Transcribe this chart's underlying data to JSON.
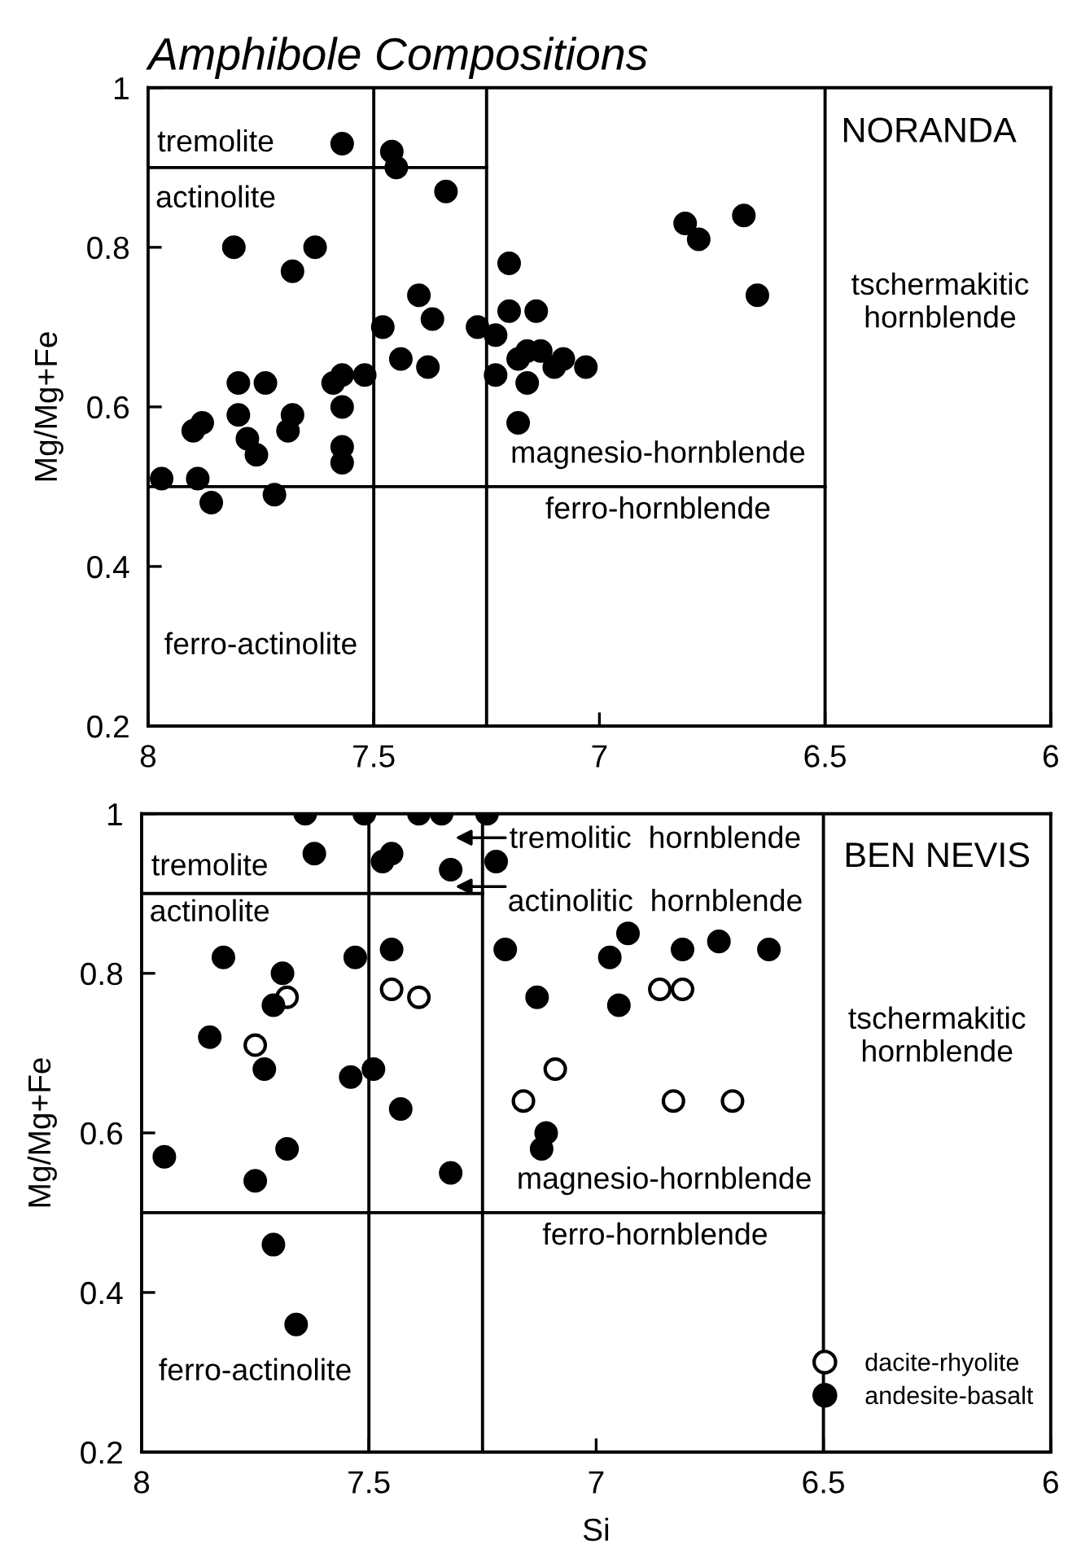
{
  "chart_data": [
    {
      "type": "scatter",
      "title": "Amphibole Compositions",
      "ylabel": "Mg/Mg+Fe",
      "xlim": [
        8,
        6
      ],
      "ylim": [
        0.2,
        1
      ],
      "xticks": [
        8,
        7.5,
        7,
        6.5,
        6
      ],
      "yticks": [
        0.2,
        0.4,
        0.6,
        0.8,
        1
      ],
      "marker": "circle",
      "grid": false,
      "legend": false,
      "annotations": [
        "tremolite",
        "actinolite",
        "ferro-actinolite",
        "magnesio-hornblende",
        "ferro-hornblende",
        "NORANDA",
        "tschermakitic\nhornblende"
      ],
      "ref_lines": [
        {
          "axis": "x",
          "value": 7.5,
          "color": "#000000"
        },
        {
          "axis": "x",
          "value": 7.25,
          "color": "#000000"
        },
        {
          "axis": "x",
          "value": 6.5,
          "color": "#000000"
        }
      ],
      "series": [
        {
          "color": "#000000",
          "x": [
            7.57,
            7.46,
            7.45,
            7.34,
            7.81,
            7.63,
            7.68,
            7.2,
            7.4,
            7.48,
            7.37,
            7.27,
            7.23,
            7.2,
            7.14,
            7.44,
            7.38,
            7.52,
            7.57,
            7.59,
            7.8,
            7.74,
            7.8,
            7.68,
            7.57,
            7.88,
            7.9,
            7.78,
            7.69,
            7.57,
            7.76,
            7.57,
            7.97,
            7.89,
            7.86,
            7.72,
            7.18,
            7.18,
            7.23,
            7.16,
            7.13,
            7.16,
            7.1,
            7.08,
            7.03,
            6.81,
            6.78,
            6.68,
            6.65
          ],
          "values": [
            0.93,
            0.92,
            0.9,
            0.87,
            0.8,
            0.8,
            0.77,
            0.78,
            0.74,
            0.7,
            0.71,
            0.7,
            0.69,
            0.72,
            0.72,
            0.66,
            0.65,
            0.64,
            0.64,
            0.63,
            0.63,
            0.63,
            0.59,
            0.59,
            0.6,
            0.58,
            0.57,
            0.56,
            0.57,
            0.55,
            0.54,
            0.53,
            0.51,
            0.51,
            0.48,
            0.49,
            0.58,
            0.66,
            0.64,
            0.67,
            0.67,
            0.63,
            0.65,
            0.66,
            0.65,
            0.83,
            0.81,
            0.84,
            0.74
          ]
        },
        {
          "type": "line",
          "marker": "none",
          "color": "#000000",
          "x": [
            8,
            7.25
          ],
          "values": [
            0.9,
            0.9
          ]
        },
        {
          "type": "line",
          "marker": "none",
          "color": "#000000",
          "x": [
            8,
            6.5
          ],
          "values": [
            0.5,
            0.5
          ]
        }
      ]
    },
    {
      "type": "scatter",
      "xlabel": "Si",
      "ylabel": "Mg/Mg+Fe",
      "xlim": [
        8,
        6
      ],
      "ylim": [
        0.2,
        1
      ],
      "xticks": [
        8,
        7.5,
        7,
        6.5,
        6
      ],
      "yticks": [
        0.2,
        0.4,
        0.6,
        0.8,
        1
      ],
      "marker": "circle",
      "grid": false,
      "legend": "bottom right",
      "annotations": [
        "tremolite",
        "actinolite",
        "tremolitic  hornblende",
        "actinolitic  hornblende",
        "ferro-actinolite",
        "magnesio-hornblende",
        "ferro-hornblende",
        "BEN NEVIS",
        "tschermakitic\nhornblende"
      ],
      "ref_lines": [
        {
          "axis": "x",
          "value": 7.5,
          "color": "#000000"
        },
        {
          "axis": "x",
          "value": 7.25,
          "color": "#000000"
        },
        {
          "axis": "x",
          "value": 6.5,
          "color": "#000000"
        }
      ],
      "series": [
        {
          "name": "dacite-rhyolite",
          "color": "#ffffff",
          "x": [
            7.68,
            7.75,
            7.45,
            7.39,
            7.09,
            7.16,
            6.86,
            6.81,
            6.83,
            6.7
          ],
          "values": [
            0.77,
            0.71,
            0.78,
            0.77,
            0.68,
            0.64,
            0.78,
            0.78,
            0.64,
            0.64
          ]
        },
        {
          "name": "andesite-basalt",
          "color": "#000000",
          "x": [
            7.64,
            7.51,
            7.39,
            7.34,
            7.24,
            7.62,
            7.45,
            7.47,
            7.32,
            7.22,
            7.82,
            7.69,
            7.71,
            7.85,
            7.73,
            7.53,
            7.45,
            7.54,
            7.49,
            7.43,
            7.95,
            7.68,
            7.75,
            7.32,
            7.71,
            7.66,
            7.2,
            7.13,
            7.11,
            7.12,
            6.93,
            6.97,
            6.81,
            6.73,
            6.62,
            6.95
          ],
          "values": [
            1,
            1,
            1,
            1,
            1,
            0.95,
            0.95,
            0.94,
            0.93,
            0.94,
            0.82,
            0.8,
            0.76,
            0.72,
            0.68,
            0.82,
            0.83,
            0.67,
            0.68,
            0.63,
            0.57,
            0.58,
            0.54,
            0.55,
            0.46,
            0.36,
            0.83,
            0.77,
            0.6,
            0.58,
            0.85,
            0.82,
            0.83,
            0.84,
            0.83,
            0.76
          ]
        },
        {
          "type": "line",
          "marker": "none",
          "color": "#000000",
          "x": [
            8,
            7.25
          ],
          "values": [
            0.9,
            0.9
          ]
        },
        {
          "type": "line",
          "marker": "none",
          "color": "#000000",
          "x": [
            8,
            6.5
          ],
          "values": [
            0.5,
            0.5
          ]
        }
      ]
    }
  ]
}
